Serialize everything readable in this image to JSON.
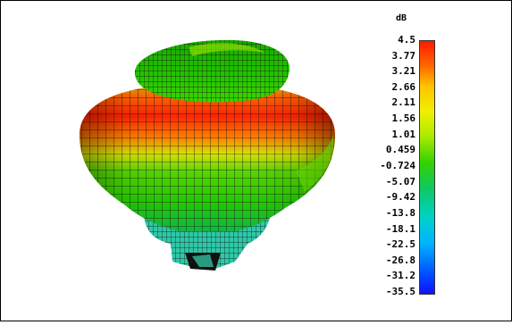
{
  "colorbar": {
    "unit": "dB",
    "ticks": [
      "4.5",
      "3.77",
      "3.21",
      "2.66",
      "2.11",
      "1.56",
      "1.01",
      "0.459",
      "-0.724",
      "-5.07",
      "-9.42",
      "-13.8",
      "-18.1",
      "-22.5",
      "-26.8",
      "-31.2",
      "-35.5"
    ]
  },
  "colors": {
    "max": "#ff1a00",
    "high": "#f0f000",
    "mid": "#34d200",
    "low": "#00d2c8",
    "min": "#1010ff",
    "mesh": "#111111"
  }
}
